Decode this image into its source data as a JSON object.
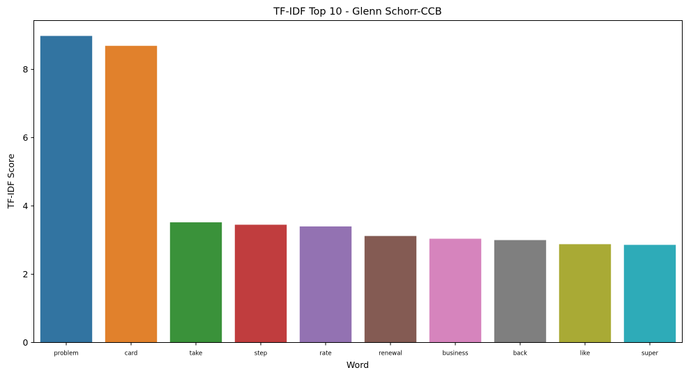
{
  "chart_data": {
    "type": "bar",
    "title": "TF-IDF Top 10 - Glenn Schorr-CCB",
    "xlabel": "Word",
    "ylabel": "TF-IDF Score",
    "categories": [
      "problem",
      "card",
      "take",
      "step",
      "rate",
      "renewal",
      "business",
      "back",
      "like",
      "super"
    ],
    "values": [
      8.98,
      8.69,
      3.52,
      3.45,
      3.4,
      3.12,
      3.04,
      3.0,
      2.88,
      2.86
    ],
    "colors": [
      "#3274a1",
      "#e1812c",
      "#3a923a",
      "#c03d3e",
      "#9372b2",
      "#845b53",
      "#d684bd",
      "#7f7f7f",
      "#a9aa35",
      "#2eabb8"
    ],
    "ylim": [
      0,
      9.43
    ],
    "yticks": [
      0,
      2,
      4,
      6,
      8
    ],
    "grid": false,
    "legend": "none"
  }
}
